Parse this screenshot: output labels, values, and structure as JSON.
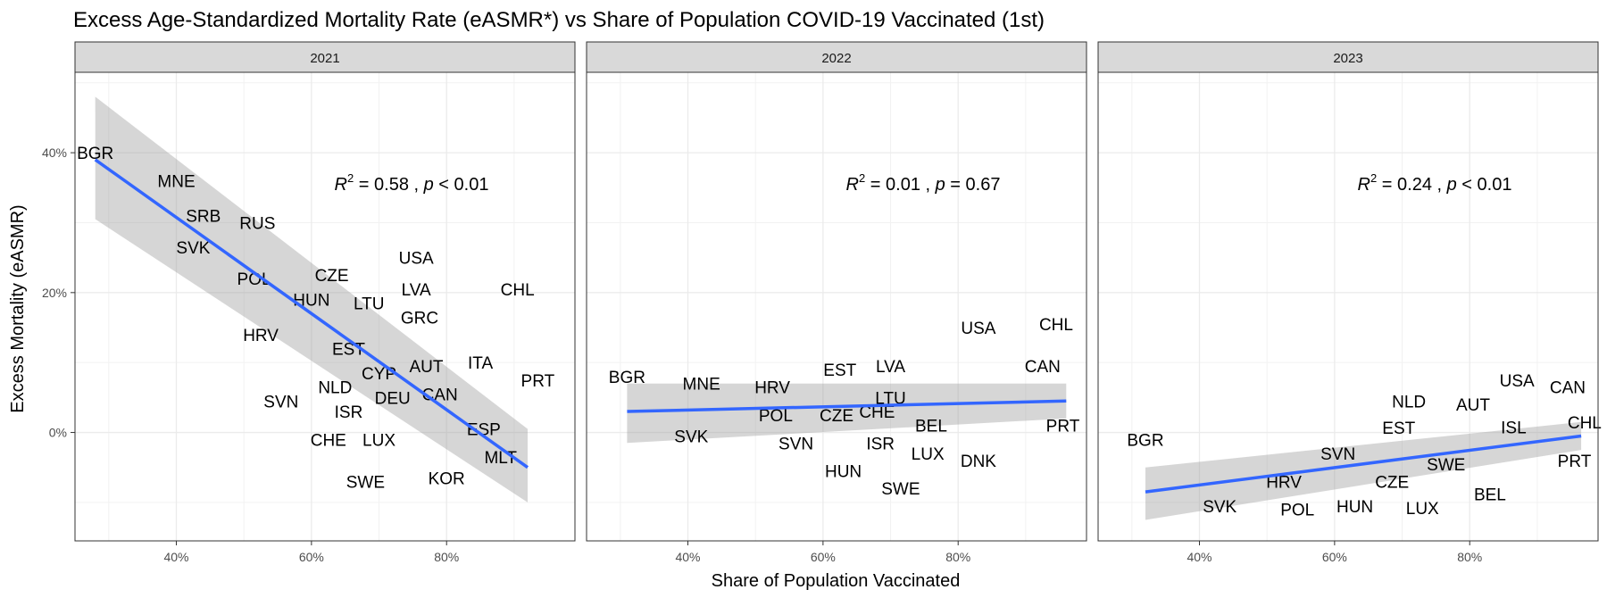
{
  "chart_data": {
    "type": "scatter",
    "title": "Excess Age-Standardized Mortality Rate (eASMR*) vs Share of Population COVID-19 Vaccinated (1st)",
    "xlabel": "Share of Population Vaccinated",
    "ylabel": "Excess Mortality (eASMR)",
    "xlim": [
      0.25,
      0.99
    ],
    "ylim": [
      -0.155,
      0.515
    ],
    "x_ticks": [
      0.4,
      0.6,
      0.8
    ],
    "x_tick_labels": [
      "40%",
      "60%",
      "80%"
    ],
    "y_ticks": [
      0.0,
      0.2,
      0.4
    ],
    "y_tick_labels": [
      "0%",
      "20%",
      "40%"
    ],
    "grid": true,
    "panels": [
      {
        "strip": "2021",
        "annotation": {
          "r2": "0.58",
          "p": "0.01",
          "p_op": "<"
        },
        "trend": {
          "x": [
            0.28,
            0.92
          ],
          "y": [
            0.39,
            -0.05
          ],
          "band_upper": [
            0.48,
            0.005
          ],
          "band_lower": [
            0.305,
            -0.1
          ]
        },
        "points": [
          {
            "label": "BGR",
            "x": 0.28,
            "y": 0.4
          },
          {
            "label": "MNE",
            "x": 0.4,
            "y": 0.36
          },
          {
            "label": "SRB",
            "x": 0.44,
            "y": 0.31
          },
          {
            "label": "RUS",
            "x": 0.52,
            "y": 0.3
          },
          {
            "label": "SVK",
            "x": 0.425,
            "y": 0.265
          },
          {
            "label": "POL",
            "x": 0.515,
            "y": 0.22
          },
          {
            "label": "CZE",
            "x": 0.63,
            "y": 0.225
          },
          {
            "label": "USA",
            "x": 0.755,
            "y": 0.25
          },
          {
            "label": "LVA",
            "x": 0.755,
            "y": 0.205
          },
          {
            "label": "CHL",
            "x": 0.905,
            "y": 0.205
          },
          {
            "label": "HUN",
            "x": 0.6,
            "y": 0.19
          },
          {
            "label": "LTU",
            "x": 0.685,
            "y": 0.185
          },
          {
            "label": "GRC",
            "x": 0.76,
            "y": 0.165
          },
          {
            "label": "HRV",
            "x": 0.525,
            "y": 0.14
          },
          {
            "label": "EST",
            "x": 0.655,
            "y": 0.12
          },
          {
            "label": "ITA",
            "x": 0.85,
            "y": 0.1
          },
          {
            "label": "AUT",
            "x": 0.77,
            "y": 0.095
          },
          {
            "label": "CYP",
            "x": 0.7,
            "y": 0.085
          },
          {
            "label": "PRT",
            "x": 0.935,
            "y": 0.075
          },
          {
            "label": "NLD",
            "x": 0.635,
            "y": 0.065
          },
          {
            "label": "DEU",
            "x": 0.72,
            "y": 0.05
          },
          {
            "label": "CAN",
            "x": 0.79,
            "y": 0.055
          },
          {
            "label": "SVN",
            "x": 0.555,
            "y": 0.045
          },
          {
            "label": "ISR",
            "x": 0.655,
            "y": 0.03
          },
          {
            "label": "ESP",
            "x": 0.855,
            "y": 0.005
          },
          {
            "label": "CHE",
            "x": 0.625,
            "y": -0.01
          },
          {
            "label": "LUX",
            "x": 0.7,
            "y": -0.01
          },
          {
            "label": "MLT",
            "x": 0.88,
            "y": -0.035
          },
          {
            "label": "SWE",
            "x": 0.68,
            "y": -0.07
          },
          {
            "label": "KOR",
            "x": 0.8,
            "y": -0.065
          }
        ]
      },
      {
        "strip": "2022",
        "annotation": {
          "r2": "0.01",
          "p": "0.67",
          "p_op": "="
        },
        "trend": {
          "x": [
            0.31,
            0.96
          ],
          "y": [
            0.03,
            0.045
          ],
          "band_upper": [
            0.07,
            0.07
          ],
          "band_lower": [
            -0.015,
            0.02
          ]
        },
        "points": [
          {
            "label": "USA",
            "x": 0.83,
            "y": 0.15
          },
          {
            "label": "CHL",
            "x": 0.945,
            "y": 0.155
          },
          {
            "label": "CAN",
            "x": 0.925,
            "y": 0.095
          },
          {
            "label": "BGR",
            "x": 0.31,
            "y": 0.08
          },
          {
            "label": "MNE",
            "x": 0.42,
            "y": 0.07
          },
          {
            "label": "EST",
            "x": 0.625,
            "y": 0.09
          },
          {
            "label": "LVA",
            "x": 0.7,
            "y": 0.095
          },
          {
            "label": "HRV",
            "x": 0.525,
            "y": 0.065
          },
          {
            "label": "LTU",
            "x": 0.7,
            "y": 0.05
          },
          {
            "label": "POL",
            "x": 0.53,
            "y": 0.025
          },
          {
            "label": "CZE",
            "x": 0.62,
            "y": 0.025
          },
          {
            "label": "CHE",
            "x": 0.68,
            "y": 0.03
          },
          {
            "label": "BEL",
            "x": 0.76,
            "y": 0.01
          },
          {
            "label": "PRT",
            "x": 0.955,
            "y": 0.01
          },
          {
            "label": "SVK",
            "x": 0.405,
            "y": -0.005
          },
          {
            "label": "SVN",
            "x": 0.56,
            "y": -0.015
          },
          {
            "label": "ISR",
            "x": 0.685,
            "y": -0.015
          },
          {
            "label": "LUX",
            "x": 0.755,
            "y": -0.03
          },
          {
            "label": "DNK",
            "x": 0.83,
            "y": -0.04
          },
          {
            "label": "HUN",
            "x": 0.63,
            "y": -0.055
          },
          {
            "label": "SWE",
            "x": 0.715,
            "y": -0.08
          }
        ]
      },
      {
        "strip": "2023",
        "annotation": {
          "r2": "0.24",
          "p": "0.01",
          "p_op": "<"
        },
        "trend": {
          "x": [
            0.32,
            0.965
          ],
          "y": [
            -0.085,
            -0.005
          ],
          "band_upper": [
            -0.05,
            0.015
          ],
          "band_lower": [
            -0.125,
            -0.025
          ]
        },
        "points": [
          {
            "label": "USA",
            "x": 0.87,
            "y": 0.075
          },
          {
            "label": "CAN",
            "x": 0.945,
            "y": 0.065
          },
          {
            "label": "NLD",
            "x": 0.71,
            "y": 0.045
          },
          {
            "label": "AUT",
            "x": 0.805,
            "y": 0.04
          },
          {
            "label": "CHL",
            "x": 0.97,
            "y": 0.015
          },
          {
            "label": "EST",
            "x": 0.695,
            "y": 0.007
          },
          {
            "label": "ISL",
            "x": 0.865,
            "y": 0.008
          },
          {
            "label": "BGR",
            "x": 0.32,
            "y": -0.01
          },
          {
            "label": "SVN",
            "x": 0.605,
            "y": -0.03
          },
          {
            "label": "PRT",
            "x": 0.955,
            "y": -0.04
          },
          {
            "label": "SWE",
            "x": 0.765,
            "y": -0.045
          },
          {
            "label": "HRV",
            "x": 0.525,
            "y": -0.07
          },
          {
            "label": "CZE",
            "x": 0.685,
            "y": -0.07
          },
          {
            "label": "BEL",
            "x": 0.83,
            "y": -0.088
          },
          {
            "label": "HUN",
            "x": 0.63,
            "y": -0.105
          },
          {
            "label": "LUX",
            "x": 0.73,
            "y": -0.108
          },
          {
            "label": "SVK",
            "x": 0.43,
            "y": -0.105
          },
          {
            "label": "POL",
            "x": 0.545,
            "y": -0.11
          }
        ]
      }
    ]
  }
}
